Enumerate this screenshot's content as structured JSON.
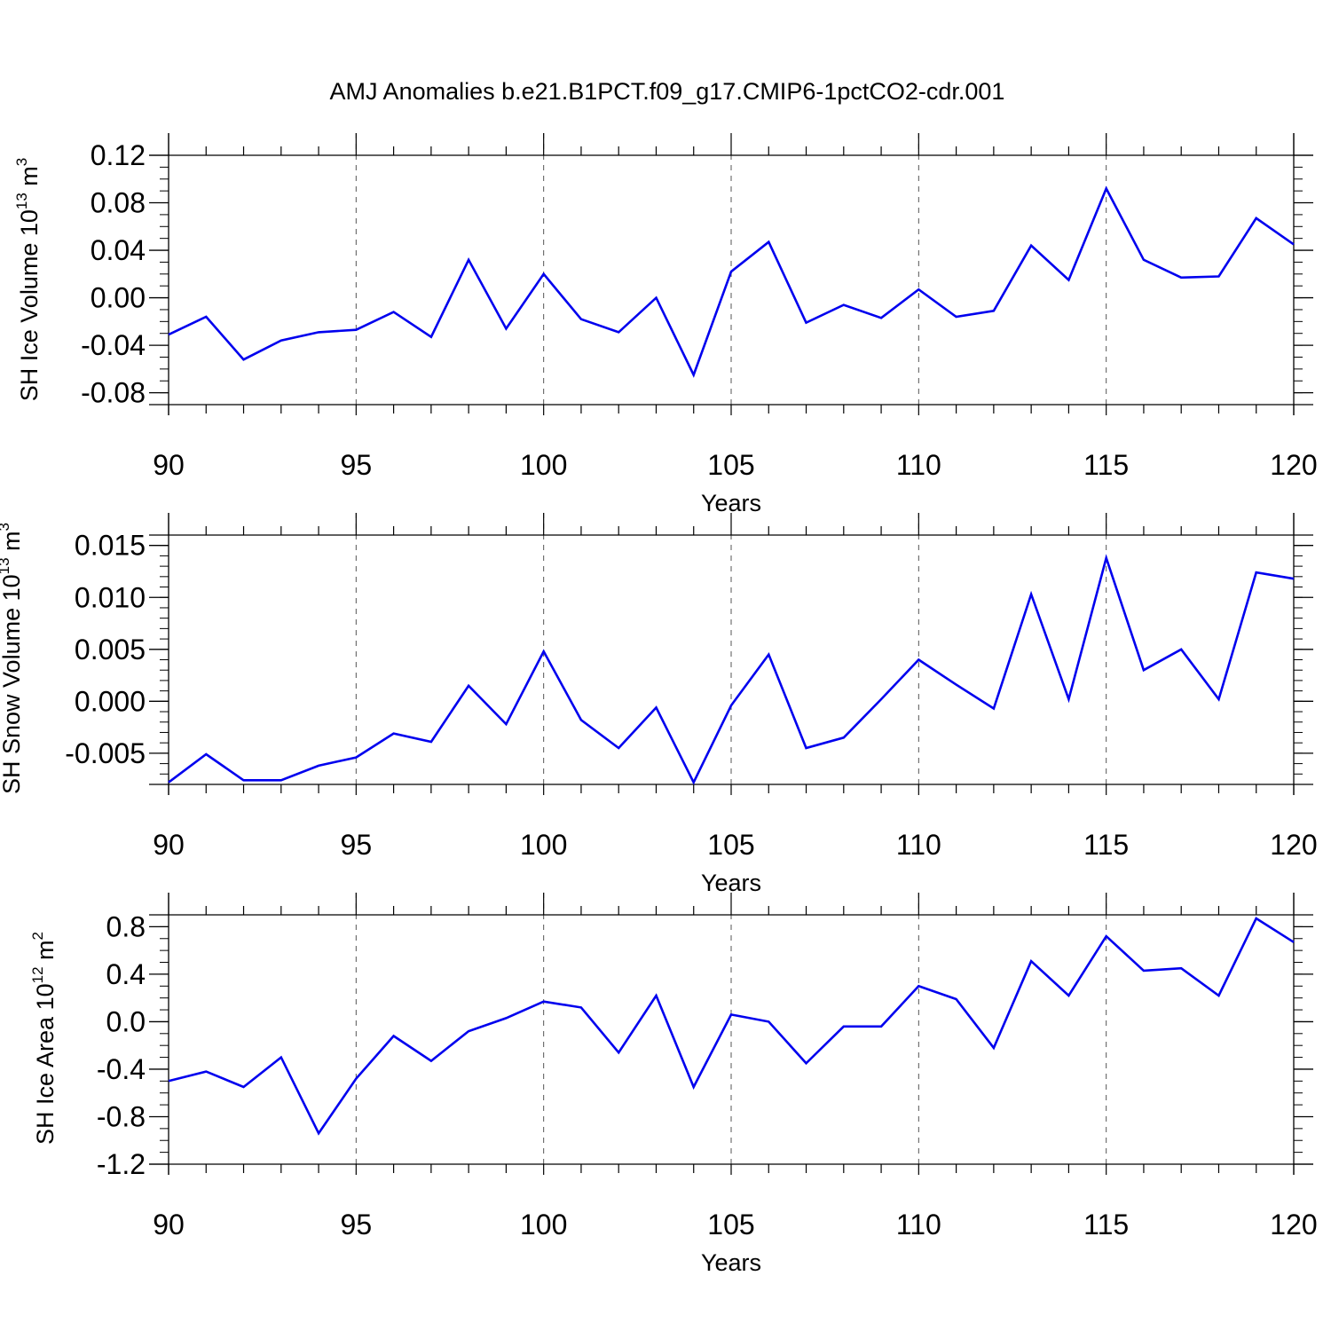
{
  "figure": {
    "title": "AMJ Anomalies b.e21.B1PCT.f09_g17.CMIP6-1pctCO2-cdr.001"
  },
  "chart_data": [
    {
      "type": "line",
      "ylabel": {
        "text": "SH Ice Volume 10",
        "exp": "13",
        "unit": " m",
        "unit_exp": "3"
      },
      "xlabel": "Years",
      "xlim": [
        90,
        120
      ],
      "ylim": [
        -0.09,
        0.12
      ],
      "xticks": [
        "90",
        "95",
        "100",
        "105",
        "110",
        "115",
        "120"
      ],
      "yticks": [
        "0.12",
        "0.08",
        "0.04",
        "0.00",
        "-0.04",
        "-0.08"
      ],
      "grid": "vertical dashed at major x ticks",
      "line_color": "#0000ee",
      "x": [
        90,
        91,
        92,
        93,
        94,
        95,
        96,
        97,
        98,
        99,
        100,
        101,
        102,
        103,
        104,
        105,
        106,
        107,
        108,
        109,
        110,
        111,
        112,
        113,
        114,
        115,
        116,
        117,
        118,
        119,
        120
      ],
      "values": [
        -0.031,
        -0.016,
        -0.052,
        -0.036,
        -0.029,
        -0.027,
        -0.012,
        -0.033,
        0.032,
        -0.026,
        0.02,
        -0.018,
        -0.029,
        0.0,
        -0.065,
        0.022,
        0.047,
        -0.021,
        -0.006,
        -0.017,
        0.007,
        -0.016,
        -0.011,
        0.044,
        0.015,
        0.092,
        0.032,
        0.017,
        0.018,
        0.067,
        0.045
      ]
    },
    {
      "type": "line",
      "ylabel": {
        "text": "SH Snow Volume 10",
        "exp": "13",
        "unit": " m",
        "unit_exp": "3"
      },
      "xlabel": "Years",
      "xlim": [
        90,
        120
      ],
      "ylim": [
        -0.008,
        0.016
      ],
      "xticks": [
        "90",
        "95",
        "100",
        "105",
        "110",
        "115",
        "120"
      ],
      "yticks": [
        "0.015",
        "0.010",
        "0.005",
        "0.000",
        "-0.005"
      ],
      "grid": "vertical dashed at major x ticks",
      "line_color": "#0000ee",
      "x": [
        90,
        91,
        92,
        93,
        94,
        95,
        96,
        97,
        98,
        99,
        100,
        101,
        102,
        103,
        104,
        105,
        106,
        107,
        108,
        109,
        110,
        111,
        112,
        113,
        114,
        115,
        116,
        117,
        118,
        119,
        120
      ],
      "values": [
        -0.0078,
        -0.0051,
        -0.0076,
        -0.0076,
        -0.0062,
        -0.0054,
        -0.0031,
        -0.0039,
        0.0015,
        -0.0022,
        0.0048,
        -0.0018,
        -0.0045,
        -0.0006,
        -0.0078,
        -0.0004,
        0.0045,
        -0.0045,
        -0.0035,
        0.0002,
        0.004,
        0.0016,
        -0.0007,
        0.0103,
        0.0002,
        0.0138,
        0.003,
        0.005,
        0.0002,
        0.0124,
        0.0118
      ]
    },
    {
      "type": "line",
      "ylabel": {
        "text": "SH Ice Area 10",
        "exp": "12",
        "unit": " m",
        "unit_exp": "2"
      },
      "xlabel": "Years",
      "xlim": [
        90,
        120
      ],
      "ylim": [
        -1.2,
        0.9
      ],
      "xticks": [
        "90",
        "95",
        "100",
        "105",
        "110",
        "115",
        "120"
      ],
      "yticks": [
        "0.8",
        "0.4",
        "0.0",
        "-0.4",
        "-0.8",
        "-1.2"
      ],
      "grid": "vertical dashed at major x ticks",
      "line_color": "#0000ee",
      "x": [
        90,
        91,
        92,
        93,
        94,
        95,
        96,
        97,
        98,
        99,
        100,
        101,
        102,
        103,
        104,
        105,
        106,
        107,
        108,
        109,
        110,
        111,
        112,
        113,
        114,
        115,
        116,
        117,
        118,
        119,
        120
      ],
      "values": [
        -0.5,
        -0.42,
        -0.55,
        -0.3,
        -0.94,
        -0.48,
        -0.12,
        -0.33,
        -0.08,
        0.03,
        0.17,
        0.12,
        -0.26,
        0.22,
        -0.55,
        0.06,
        0.0,
        -0.35,
        -0.04,
        -0.04,
        0.3,
        0.19,
        -0.22,
        0.51,
        0.22,
        0.72,
        0.43,
        0.45,
        0.22,
        0.87,
        0.67
      ]
    }
  ]
}
